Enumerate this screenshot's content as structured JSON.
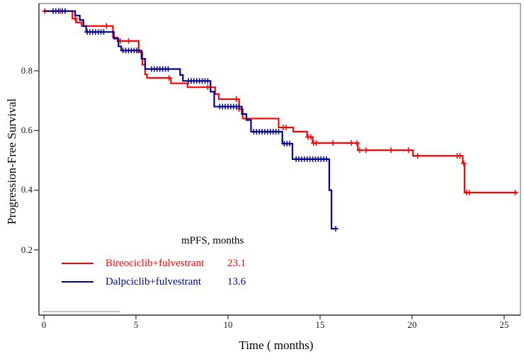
{
  "figure": {
    "y_axis": {
      "label": "Progression-Free Survival",
      "ticks": [
        "0.8",
        "0.6",
        "0.4",
        "0.2"
      ]
    },
    "x_axis": {
      "label": "Time ( months)",
      "ticks": [
        "0",
        "5",
        "10",
        "15",
        "20",
        "25"
      ]
    },
    "legend": {
      "header": "mPFS, months",
      "entries": [
        {
          "label": "Bireociclib+fulvestrant",
          "value": "23.1"
        },
        {
          "label": "Dalpciclib+fulvestrant",
          "value": "13.6"
        }
      ]
    }
  },
  "chart_data": {
    "type": "line",
    "subtype": "kaplan-meier-step-curves",
    "title": "",
    "xlabel": "Time ( months)",
    "ylabel": "Progression-Free Survival",
    "xlim": [
      0,
      26
    ],
    "ylim": [
      0,
      1.0
    ],
    "x_ticks": [
      0,
      5,
      10,
      15,
      20,
      25
    ],
    "y_ticks": [
      0.8,
      0.6,
      0.4,
      0.2
    ],
    "grid": false,
    "legend_header": "mPFS, months",
    "legend_position": "lower-left-inside",
    "series": [
      {
        "name": "Bireociclib+fulvestrant",
        "median_pfs_months": 23.1,
        "color": "#ff0000",
        "end_time": 25.75,
        "steps": [
          [
            0,
            1.0
          ],
          [
            1.55,
            0.975
          ],
          [
            1.75,
            0.962
          ],
          [
            2.05,
            0.95
          ],
          [
            3.75,
            0.912
          ],
          [
            4.0,
            0.9
          ],
          [
            5.15,
            0.862
          ],
          [
            5.35,
            0.82
          ],
          [
            5.5,
            0.788
          ],
          [
            5.6,
            0.776
          ],
          [
            6.9,
            0.758
          ],
          [
            7.8,
            0.745
          ],
          [
            9.3,
            0.722
          ],
          [
            9.5,
            0.705
          ],
          [
            10.6,
            0.672
          ],
          [
            10.8,
            0.64
          ],
          [
            12.75,
            0.61
          ],
          [
            13.55,
            0.596
          ],
          [
            14.3,
            0.578
          ],
          [
            14.6,
            0.558
          ],
          [
            17.05,
            0.534
          ],
          [
            20.05,
            0.515
          ],
          [
            22.75,
            0.49
          ],
          [
            22.85,
            0.392
          ]
        ],
        "censor_times": [
          0.05,
          0.9,
          1.7,
          3.4,
          4.15,
          4.6,
          6.8,
          8.9,
          10.45,
          10.6,
          13.0,
          13.15,
          14.35,
          14.5,
          14.65,
          14.8,
          15.7,
          16.7,
          17.0,
          17.15,
          17.5,
          18.85,
          19.8,
          20.3,
          22.45,
          22.6,
          22.8,
          22.95,
          23.1,
          25.6
        ]
      },
      {
        "name": "Dalpciclib+fulvestrant",
        "median_pfs_months": 13.6,
        "color": "#00008b",
        "end_time": 15.9,
        "steps": [
          [
            0,
            1.0
          ],
          [
            1.7,
            0.985
          ],
          [
            1.95,
            0.97
          ],
          [
            2.15,
            0.95
          ],
          [
            2.3,
            0.93
          ],
          [
            3.8,
            0.908
          ],
          [
            4.05,
            0.882
          ],
          [
            4.2,
            0.868
          ],
          [
            5.3,
            0.84
          ],
          [
            5.5,
            0.806
          ],
          [
            7.4,
            0.786
          ],
          [
            7.55,
            0.766
          ],
          [
            9.05,
            0.73
          ],
          [
            9.25,
            0.68
          ],
          [
            10.75,
            0.655
          ],
          [
            11.0,
            0.635
          ],
          [
            11.25,
            0.596
          ],
          [
            12.95,
            0.556
          ],
          [
            13.5,
            0.504
          ],
          [
            15.5,
            0.4
          ],
          [
            15.62,
            0.271
          ]
        ],
        "censor_times": [
          0.5,
          0.65,
          0.8,
          1.0,
          1.15,
          2.35,
          2.5,
          2.65,
          2.8,
          2.95,
          3.1,
          3.25,
          4.3,
          4.45,
          4.6,
          4.75,
          4.9,
          5.05,
          5.85,
          6.0,
          6.15,
          6.3,
          6.45,
          6.6,
          6.75,
          7.85,
          8.0,
          8.15,
          8.3,
          8.45,
          8.6,
          8.75,
          8.9,
          9.55,
          9.7,
          9.85,
          10.0,
          10.15,
          10.3,
          10.45,
          10.6,
          11.4,
          11.55,
          11.7,
          11.85,
          12.0,
          12.15,
          12.3,
          12.45,
          12.6,
          12.75,
          13.05,
          13.2,
          13.35,
          13.7,
          13.85,
          14.0,
          14.15,
          14.3,
          14.45,
          14.6,
          14.75,
          14.9,
          15.05,
          15.2,
          15.35,
          15.85
        ]
      }
    ]
  }
}
